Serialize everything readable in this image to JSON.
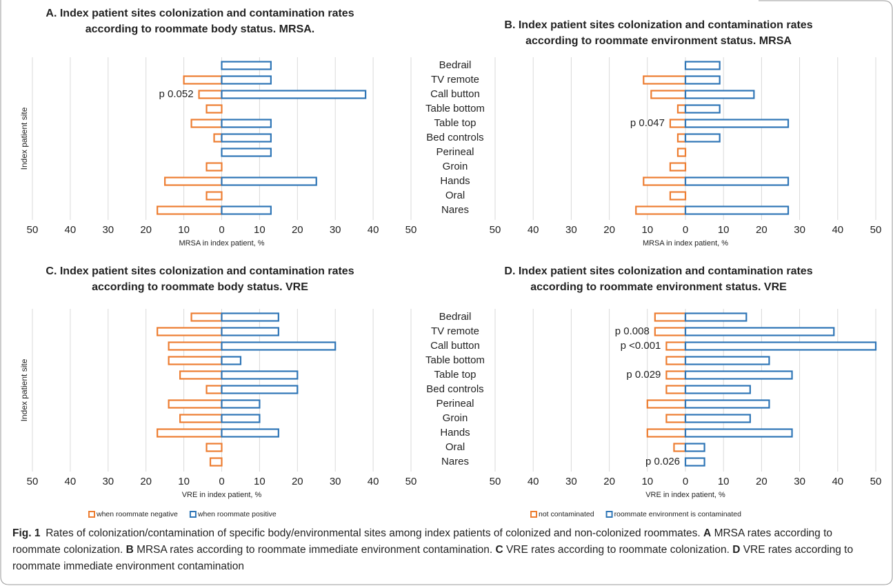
{
  "chart_data": [
    {
      "type": "bar",
      "orientation": "horizontal",
      "title": [
        "A. Index patient sites colonization and contamination rates",
        "according to roommate body status. MRSA."
      ],
      "ylabel": "Index patient site",
      "xlabel": "MRSA in index patient, %",
      "xlim": [
        -50,
        50
      ],
      "xticks": [
        {
          "value": -50,
          "label": "50"
        },
        {
          "value": -40,
          "label": "40"
        },
        {
          "value": -30,
          "label": "30"
        },
        {
          "value": -20,
          "label": "20"
        },
        {
          "value": -10,
          "label": "10"
        },
        0,
        10,
        20,
        30,
        40,
        50
      ],
      "grid": true,
      "series": [
        {
          "color": "#ed7d31",
          "values": [
            0,
            -10,
            -6,
            -4,
            -8,
            -2,
            0,
            -4,
            -15,
            -4,
            -17
          ]
        },
        {
          "color": "#2e75b6",
          "values": [
            13,
            13,
            38,
            0,
            13,
            13,
            13,
            0,
            25,
            0,
            13
          ]
        }
      ],
      "annotations": [
        {
          "text": "p 0.052",
          "row": 2
        }
      ]
    },
    {
      "type": "bar",
      "orientation": "horizontal",
      "title": [
        "B. Index patient sites colonization and contamination rates",
        "according to roommate environment status. MRSA"
      ],
      "xlabel": "MRSA in index patient, %",
      "categories": [
        "Bedrail",
        "TV remote",
        "Call button",
        "Table bottom",
        "Table top",
        "Bed controls",
        "Perineal",
        "Groin",
        "Hands",
        "Oral",
        "Nares"
      ],
      "xlim": [
        -50,
        50
      ],
      "xticks": [
        {
          "value": -50,
          "label": "50"
        },
        {
          "value": -40,
          "label": "40"
        },
        {
          "value": -30,
          "label": "30"
        },
        {
          "value": -20,
          "label": "20"
        },
        {
          "value": -10,
          "label": "10"
        },
        0,
        10,
        20,
        30,
        40,
        50
      ],
      "grid": true,
      "series": [
        {
          "color": "#ed7d31",
          "values": [
            0,
            -11,
            -9,
            -2,
            -4,
            -2,
            -2,
            -4,
            -11,
            -4,
            -13
          ]
        },
        {
          "color": "#2e75b6",
          "values": [
            9,
            9,
            18,
            9,
            27,
            9,
            0,
            0,
            27,
            0,
            27
          ]
        }
      ],
      "annotations": [
        {
          "text": "p 0.047",
          "row": 4
        }
      ]
    },
    {
      "type": "bar",
      "orientation": "horizontal",
      "title": [
        "C. Index patient sites colonization and contamination rates",
        "according to roommate body status. VRE"
      ],
      "ylabel": "Index patient site",
      "xlabel": "VRE in index patient, %",
      "xlim": [
        -50,
        50
      ],
      "xticks": [
        {
          "value": -50,
          "label": "50"
        },
        {
          "value": -40,
          "label": "40"
        },
        {
          "value": -30,
          "label": "30"
        },
        {
          "value": -20,
          "label": "20"
        },
        {
          "value": -10,
          "label": "10"
        },
        0,
        10,
        20,
        30,
        40,
        50
      ],
      "grid": true,
      "legend": "bottom",
      "series": [
        {
          "name": "when roommate negative",
          "color": "#ed7d31",
          "values": [
            -8,
            -17,
            -14,
            -14,
            -11,
            -4,
            -14,
            -11,
            -17,
            -4,
            -3
          ]
        },
        {
          "name": "when roommate positive",
          "color": "#2e75b6",
          "values": [
            15,
            15,
            30,
            5,
            20,
            20,
            10,
            10,
            15,
            0,
            0
          ]
        }
      ],
      "annotations": []
    },
    {
      "type": "bar",
      "orientation": "horizontal",
      "title": [
        "D. Index patient sites colonization and contamination rates",
        "according to roommate environment status. VRE"
      ],
      "xlabel": "VRE in index patient, %",
      "categories": [
        "Bedrail",
        "TV remote",
        "Call button",
        "Table bottom",
        "Table top",
        "Bed controls",
        "Perineal",
        "Groin",
        "Hands",
        "Oral",
        "Nares"
      ],
      "xlim": [
        -50,
        50
      ],
      "xticks": [
        {
          "value": -50,
          "label": "50"
        },
        {
          "value": -40,
          "label": "40"
        },
        {
          "value": -30,
          "label": "30"
        },
        {
          "value": -20,
          "label": "20"
        },
        {
          "value": -10,
          "label": "10"
        },
        0,
        10,
        20,
        30,
        40,
        50
      ],
      "grid": true,
      "legend": "bottom",
      "series": [
        {
          "name": "not contaminated",
          "color": "#ed7d31",
          "values": [
            -8,
            -8,
            -5,
            -5,
            -5,
            -5,
            -10,
            -5,
            -10,
            -3,
            0
          ]
        },
        {
          "name": "roommate environment is contaminated",
          "color": "#2e75b6",
          "values": [
            16,
            39,
            50,
            22,
            28,
            17,
            22,
            17,
            28,
            5,
            5
          ]
        }
      ],
      "annotations": [
        {
          "text": "p 0.008",
          "row": 1
        },
        {
          "text": "p <0.001",
          "row": 2
        },
        {
          "text": "p 0.029",
          "row": 4
        },
        {
          "text": "p 0.026",
          "row": 10
        }
      ]
    }
  ],
  "caption": {
    "label": "Fig. 1",
    "parts": [
      {
        "text": "Rates of colonization/contamination of specific body/environmental sites among index patients of colonized and non-colonized roommates."
      },
      {
        "text": "A",
        "bold": true
      },
      {
        "text": "MRSA rates according to roommate colonization."
      },
      {
        "text": "B",
        "bold": true
      },
      {
        "text": "MRSA rates according to roommate immediate environment contamination."
      },
      {
        "text": "C",
        "bold": true
      },
      {
        "text": "VRE rates according to roommate colonization."
      },
      {
        "text": "D",
        "bold": true
      },
      {
        "text": "VRE rates according to roommate immediate environment contamination"
      }
    ]
  }
}
